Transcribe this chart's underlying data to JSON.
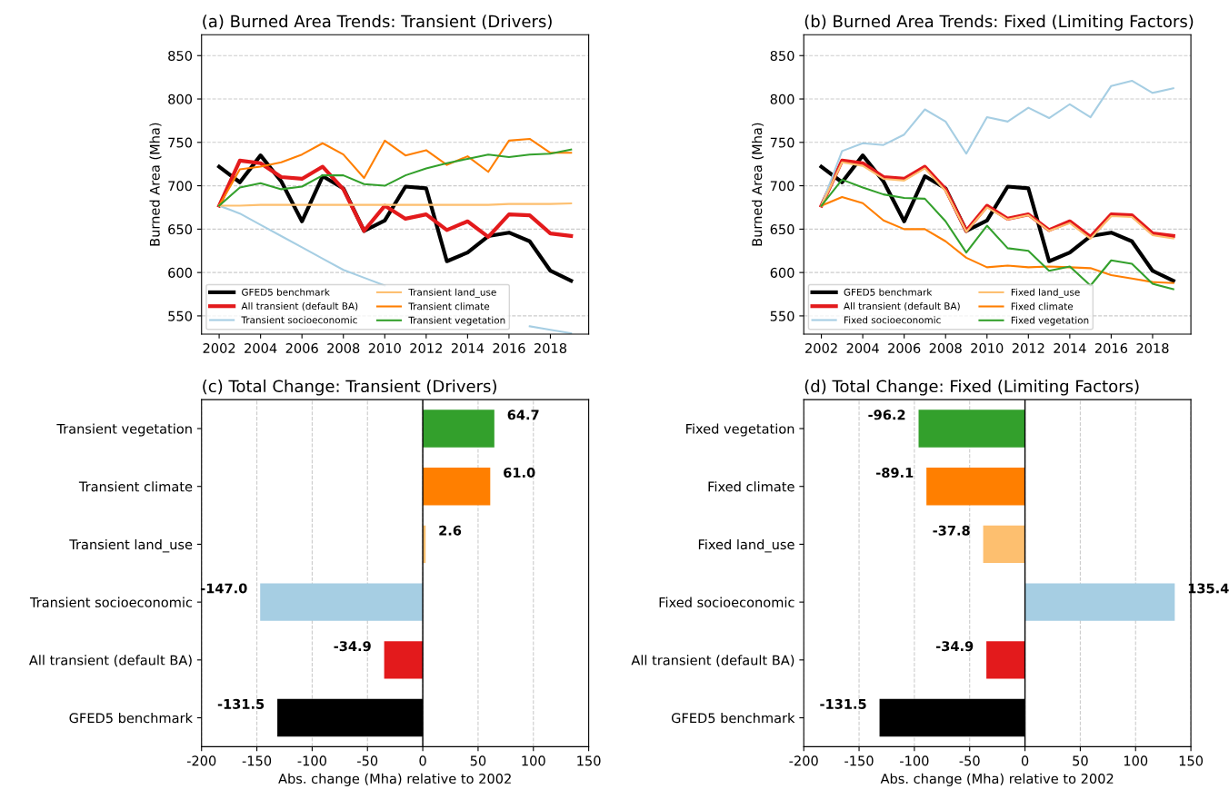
{
  "chart_data": [
    {
      "type": "line",
      "title": "(a) Burned Area Trends: Transient (Drivers)",
      "ylabel": "Burned Area (Mha)",
      "x": [
        2002,
        2003,
        2004,
        2005,
        2006,
        2007,
        2008,
        2009,
        2010,
        2011,
        2012,
        2013,
        2014,
        2015,
        2016,
        2017,
        2018,
        2019
      ],
      "xlim": [
        2001.15,
        2019.85
      ],
      "xticks": [
        2002,
        2004,
        2006,
        2008,
        2010,
        2012,
        2014,
        2016,
        2018
      ],
      "ylim": [
        529,
        874
      ],
      "yticks": [
        550,
        600,
        650,
        700,
        750,
        800,
        850
      ],
      "grid": "y",
      "legend": "bottom left",
      "series": [
        {
          "name": "GFED5 benchmark",
          "color": "#000000",
          "values": [
            722,
            704,
            735,
            705,
            659,
            711,
            697,
            648,
            660,
            699,
            697,
            613,
            623,
            642,
            646,
            636,
            602,
            590.5
          ]
        },
        {
          "name": "All transient (default BA)",
          "color": "#e31a1c",
          "values": [
            677,
            729,
            726,
            710,
            708,
            722,
            696,
            648,
            677,
            662,
            667,
            649,
            659,
            641,
            667,
            666,
            645,
            642.1
          ]
        },
        {
          "name": "Transient socioeconomic",
          "color": "#a6cee3",
          "values": [
            677,
            668,
            655,
            642,
            629,
            616,
            603,
            594,
            585,
            null,
            null,
            null,
            null,
            null,
            null,
            538,
            534,
            530
          ]
        },
        {
          "name": "Transient land_use",
          "color": "#fdbf6f",
          "values": [
            677,
            677,
            678,
            678,
            678,
            678,
            678,
            678,
            678,
            678,
            678,
            678,
            678,
            678,
            679,
            679,
            679,
            679.6
          ]
        },
        {
          "name": "Transient climate",
          "color": "#ff7f00",
          "values": [
            677,
            719,
            722,
            727,
            736,
            749,
            736,
            709,
            752,
            735,
            741,
            724,
            734,
            716,
            752,
            754,
            738,
            738
          ]
        },
        {
          "name": "Transient vegetation",
          "color": "#33a02c",
          "values": [
            677,
            698,
            703,
            696,
            699,
            712,
            712,
            702,
            700,
            712,
            720,
            726,
            731,
            736,
            733,
            736,
            737,
            741.7
          ]
        }
      ]
    },
    {
      "type": "line",
      "title": "(b) Burned Area Trends: Fixed (Limiting Factors)",
      "ylabel": "Burned Area (Mha)",
      "x": [
        2002,
        2003,
        2004,
        2005,
        2006,
        2007,
        2008,
        2009,
        2010,
        2011,
        2012,
        2013,
        2014,
        2015,
        2016,
        2017,
        2018,
        2019
      ],
      "xlim": [
        2001.15,
        2019.85
      ],
      "xticks": [
        2002,
        2004,
        2006,
        2008,
        2010,
        2012,
        2014,
        2016,
        2018
      ],
      "ylim": [
        529,
        874
      ],
      "yticks": [
        550,
        600,
        650,
        700,
        750,
        800,
        850
      ],
      "grid": "y",
      "legend": "bottom left",
      "series": [
        {
          "name": "GFED5 benchmark",
          "color": "#000000",
          "values": [
            722,
            704,
            735,
            705,
            659,
            711,
            697,
            648,
            660,
            699,
            697,
            613,
            623,
            642,
            646,
            636,
            602,
            590.5
          ]
        },
        {
          "name": "All transient (default BA)",
          "color": "#e31a1c",
          "values": [
            677,
            729,
            726,
            710,
            708,
            722,
            696,
            648,
            677,
            662,
            667,
            649,
            659,
            641,
            667,
            666,
            645,
            642.1
          ]
        },
        {
          "name": "Fixed socioeconomic",
          "color": "#a6cee3",
          "values": [
            677,
            740,
            749,
            747,
            759,
            788,
            774,
            737,
            779,
            774,
            790,
            778,
            794,
            779,
            815,
            821,
            807,
            812.4
          ]
        },
        {
          "name": "Fixed land_use",
          "color": "#fdbf6f",
          "values": [
            677,
            727,
            723,
            708,
            706,
            720,
            694,
            647,
            675,
            661,
            666,
            648,
            657,
            639,
            665,
            664,
            643,
            639.2
          ]
        },
        {
          "name": "Fixed climate",
          "color": "#ff7f00",
          "values": [
            677,
            687,
            680,
            660,
            650,
            650,
            636,
            617,
            606,
            608,
            606,
            607,
            606,
            605,
            597,
            593,
            589,
            587.9
          ]
        },
        {
          "name": "Fixed vegetation",
          "color": "#33a02c",
          "values": [
            677,
            707,
            698,
            690,
            686,
            685,
            659,
            623,
            654,
            628,
            625,
            602,
            607,
            585,
            614,
            610,
            587,
            580.8
          ]
        }
      ]
    },
    {
      "type": "bar",
      "orientation": "horizontal",
      "title": "(c) Total Change: Transient (Drivers)",
      "xlabel": "Abs. change (Mha) relative to 2002",
      "categories": [
        "Transient vegetation",
        "Transient climate",
        "Transient land_use",
        "Transient socioeconomic",
        "All transient (default BA)",
        "GFED5 benchmark"
      ],
      "values": [
        64.7,
        61.0,
        2.6,
        -147.0,
        -34.9,
        -131.5
      ],
      "value_labels": [
        "64.7",
        "61.0",
        "2.6",
        "-147.0",
        "-34.9",
        "-131.5"
      ],
      "colors": [
        "#33a02c",
        "#ff7f00",
        "#fdbf6f",
        "#a6cee3",
        "#e31a1c",
        "#000000"
      ],
      "xlim": [
        -200,
        150
      ],
      "xticks": [
        -200,
        -150,
        -100,
        -50,
        0,
        50,
        100,
        150
      ],
      "grid": "x",
      "ref_lines": [
        {
          "axis": "x",
          "value": 0,
          "color": "#000000",
          "line_style": "solid"
        }
      ]
    },
    {
      "type": "bar",
      "orientation": "horizontal",
      "title": "(d) Total Change: Fixed (Limiting Factors)",
      "xlabel": "Abs. change (Mha) relative to 2002",
      "categories": [
        "Fixed vegetation",
        "Fixed climate",
        "Fixed land_use",
        "Fixed socioeconomic",
        "All transient (default BA)",
        "GFED5 benchmark"
      ],
      "values": [
        -96.2,
        -89.1,
        -37.8,
        135.4,
        -34.9,
        -131.5
      ],
      "value_labels": [
        "-96.2",
        "-89.1",
        "-37.8",
        "135.4",
        "-34.9",
        "-131.5"
      ],
      "colors": [
        "#33a02c",
        "#ff7f00",
        "#fdbf6f",
        "#a6cee3",
        "#e31a1c",
        "#000000"
      ],
      "xlim": [
        -200,
        150
      ],
      "xticks": [
        -200,
        -150,
        -100,
        -50,
        0,
        50,
        100,
        150
      ],
      "grid": "x",
      "ref_lines": [
        {
          "axis": "x",
          "value": 0,
          "color": "#000000",
          "line_style": "solid"
        }
      ]
    }
  ]
}
